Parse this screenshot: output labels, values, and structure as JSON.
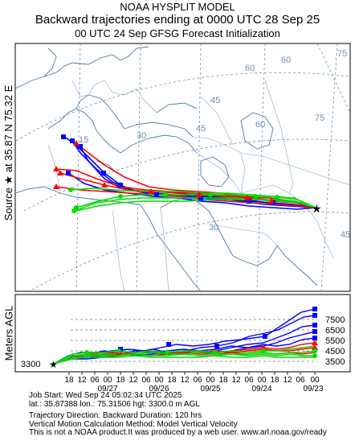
{
  "header": {
    "line1": "NOAA HYSPLIT MODEL",
    "line2": "Backward trajectories ending at 0000 UTC 28 Sep 25",
    "line3": "00 UTC 24 Sep    GFSG  Forecast Initialization"
  },
  "source_label": "Source ★ at   35.87 N   75.32 E",
  "map": {
    "lat_labels": [
      "60",
      "45",
      "30"
    ],
    "lon_labels": [
      "75",
      "60",
      "45",
      "30",
      "15",
      "75",
      "60",
      "45"
    ],
    "colors": {
      "red": "#ff0000",
      "blue": "#0000ff",
      "green": "#00dd00",
      "graticule": "#6b8fb3",
      "coast": "#4a7aa8"
    }
  },
  "vertical": {
    "ylabel": "Meters AGL",
    "base_label": "3300",
    "levels": [
      "7500",
      "6500",
      "5500",
      "4500",
      "3500"
    ],
    "time_ticks": [
      "18",
      "12",
      "06",
      "00",
      "18",
      "12",
      "06",
      "00",
      "18",
      "12",
      "06",
      "00",
      "18",
      "12",
      "06",
      "00",
      "18",
      "12",
      "06",
      "00"
    ],
    "date_labels": [
      "09/27",
      "09/26",
      "09/25",
      "09/24",
      "09/23"
    ]
  },
  "info": {
    "line1": "Job Start: Wed Sep 24 05:02:34 UTC 2025",
    "line2": "lat.: 35.87388   lon.: 75.31506   hgt: 3300.0 m AGL",
    "line3": "Trajectory Direction: Backward       Duration: 120 hrs",
    "line4": "Vertical Motion Calculation Method: Model Vertical Velocity",
    "line5": "This is not a NOAA product.It was produced by a web user. www.arl.noaa.gov/ready"
  }
}
